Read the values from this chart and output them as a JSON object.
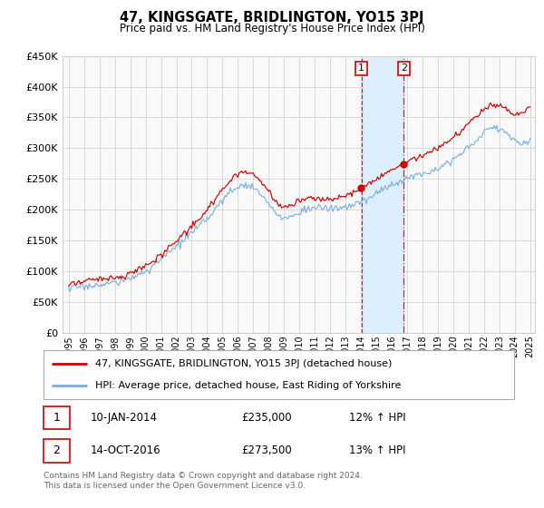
{
  "title": "47, KINGSGATE, BRIDLINGTON, YO15 3PJ",
  "subtitle": "Price paid vs. HM Land Registry's House Price Index (HPI)",
  "legend_line1": "47, KINGSGATE, BRIDLINGTON, YO15 3PJ (detached house)",
  "legend_line2": "HPI: Average price, detached house, East Riding of Yorkshire",
  "transaction1_date": "10-JAN-2014",
  "transaction1_price": "£235,000",
  "transaction1_hpi": "12% ↑ HPI",
  "transaction2_date": "14-OCT-2016",
  "transaction2_price": "£273,500",
  "transaction2_hpi": "13% ↑ HPI",
  "footer": "Contains HM Land Registry data © Crown copyright and database right 2024.\nThis data is licensed under the Open Government Licence v3.0.",
  "red_color": "#cc0000",
  "blue_color": "#7aaddd",
  "shaded_color": "#ddeeff",
  "grid_color": "#cccccc",
  "bg_color": "#f8f8f8",
  "ylim": [
    0,
    450000
  ],
  "yticks": [
    0,
    50000,
    100000,
    150000,
    200000,
    250000,
    300000,
    350000,
    400000,
    450000
  ],
  "x_start_year": 1995,
  "x_end_year": 2025,
  "transaction1_year": 2014.03,
  "transaction2_year": 2016.79,
  "transaction1_price_val": 235000,
  "transaction2_price_val": 273500
}
